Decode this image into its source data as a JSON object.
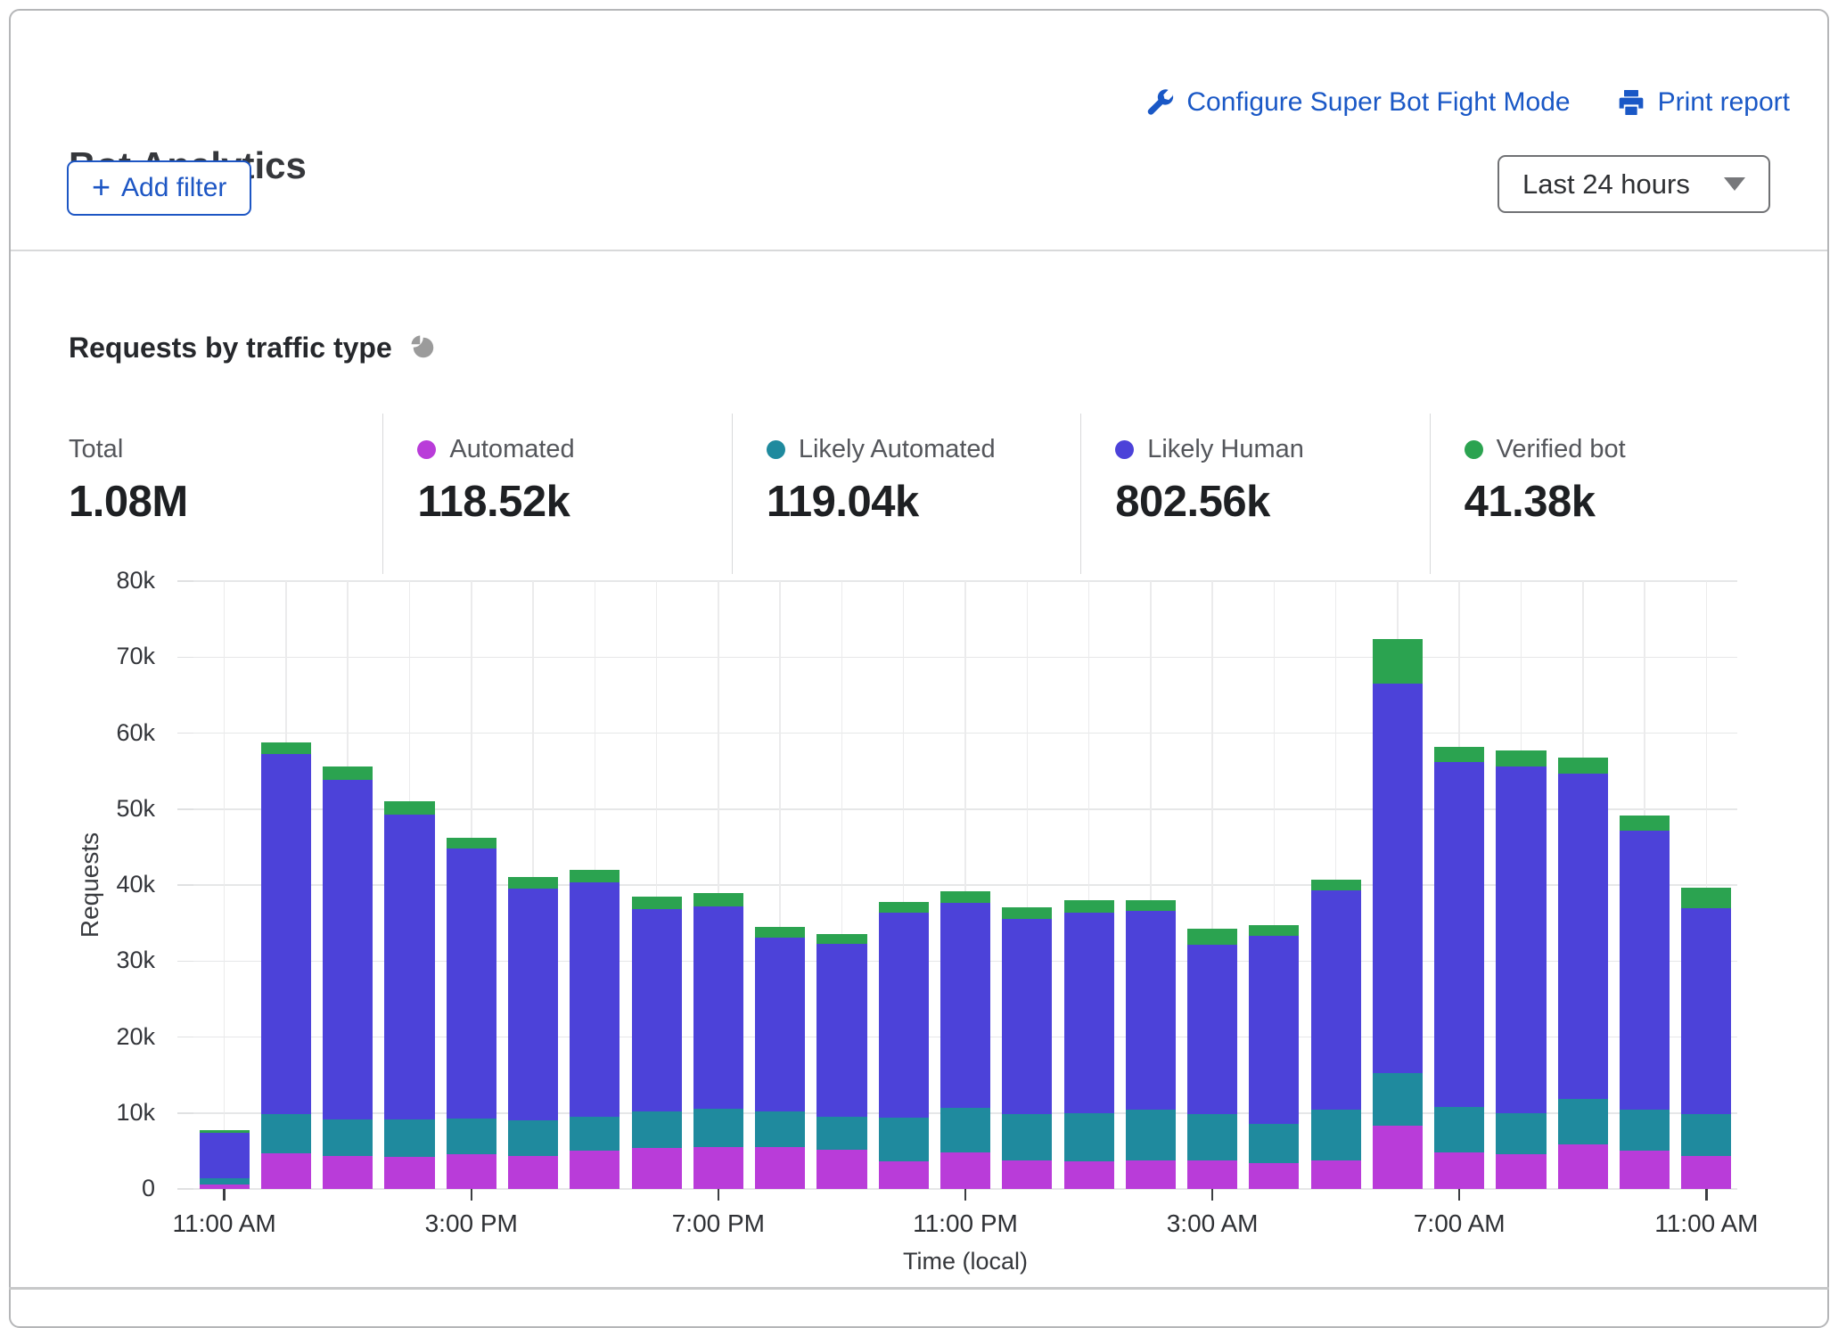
{
  "header": {
    "title": "Bot Analytics",
    "configure_link_label": "Configure Super Bot Fight Mode",
    "print_link_label": "Print report",
    "add_filter_plus": "+",
    "add_filter_label": "Add filter",
    "time_range_value": "Last 24 hours"
  },
  "section": {
    "title": "Requests by traffic type",
    "stats": [
      {
        "label": "Total",
        "value": "1.08M",
        "color": ""
      },
      {
        "label": "Automated",
        "value": "118.52k",
        "color": "#b93cd9"
      },
      {
        "label": "Likely Automated",
        "value": "119.04k",
        "color": "#1f8a9e"
      },
      {
        "label": "Likely Human",
        "value": "802.56k",
        "color": "#4c42d9"
      },
      {
        "label": "Verified bot",
        "value": "41.38k",
        "color": "#2ba350"
      }
    ]
  },
  "chart_data": {
    "type": "bar",
    "stacked": true,
    "title": "Requests by traffic type",
    "xlabel": "Time (local)",
    "ylabel": "Requests",
    "ylim": [
      0,
      80000
    ],
    "grid": true,
    "y_ticks": [
      "0",
      "10k",
      "20k",
      "30k",
      "40k",
      "50k",
      "60k",
      "70k",
      "80k"
    ],
    "x_tick_positions": [
      0,
      4,
      8,
      12,
      16,
      20,
      24
    ],
    "x_tick_labels": [
      "11:00 AM",
      "3:00 PM",
      "7:00 PM",
      "11:00 PM",
      "3:00 AM",
      "7:00 AM",
      "11:00 AM"
    ],
    "categories": [
      "11:00 AM",
      "12:00 PM",
      "1:00 PM",
      "2:00 PM",
      "3:00 PM",
      "4:00 PM",
      "5:00 PM",
      "6:00 PM",
      "7:00 PM",
      "8:00 PM",
      "9:00 PM",
      "10:00 PM",
      "11:00 PM",
      "12:00 AM",
      "1:00 AM",
      "2:00 AM",
      "3:00 AM",
      "4:00 AM",
      "5:00 AM",
      "6:00 AM",
      "7:00 AM",
      "8:00 AM",
      "9:00 AM",
      "10:00 AM",
      "11:00 AM"
    ],
    "series": [
      {
        "name": "Automated",
        "color": "#b93cd9",
        "values": [
          600,
          4700,
          4400,
          4200,
          4600,
          4400,
          5000,
          5400,
          5500,
          5500,
          5200,
          3600,
          4800,
          3800,
          3600,
          3700,
          3700,
          3400,
          3800,
          8300,
          4800,
          4600,
          5900,
          5100,
          4400
        ]
      },
      {
        "name": "Likely Automated",
        "color": "#1f8a9e",
        "values": [
          800,
          5200,
          4800,
          4900,
          4700,
          4600,
          4500,
          4800,
          5100,
          4700,
          4300,
          5800,
          5900,
          6100,
          6400,
          6800,
          6100,
          5200,
          6700,
          6900,
          6000,
          5400,
          5900,
          5400,
          5400
        ]
      },
      {
        "name": "Likely Human",
        "color": "#4c42d9",
        "values": [
          6000,
          47300,
          44700,
          40200,
          35500,
          30500,
          30800,
          26600,
          26600,
          22900,
          22800,
          27000,
          27000,
          25700,
          26400,
          26100,
          22300,
          24700,
          28800,
          51300,
          45400,
          45600,
          42900,
          36700,
          27100
        ]
      },
      {
        "name": "Verified bot",
        "color": "#2ba350",
        "values": [
          300,
          1600,
          1700,
          1700,
          1400,
          1600,
          1700,
          1700,
          1700,
          1400,
          1200,
          1400,
          1500,
          1500,
          1600,
          1400,
          2100,
          1400,
          1400,
          5900,
          2000,
          2100,
          2100,
          1900,
          2700
        ]
      }
    ]
  },
  "colors": {
    "link_blue": "#1a58c6",
    "button_blue": "#1d56c4",
    "icon_gray": "#9b9b9b"
  }
}
